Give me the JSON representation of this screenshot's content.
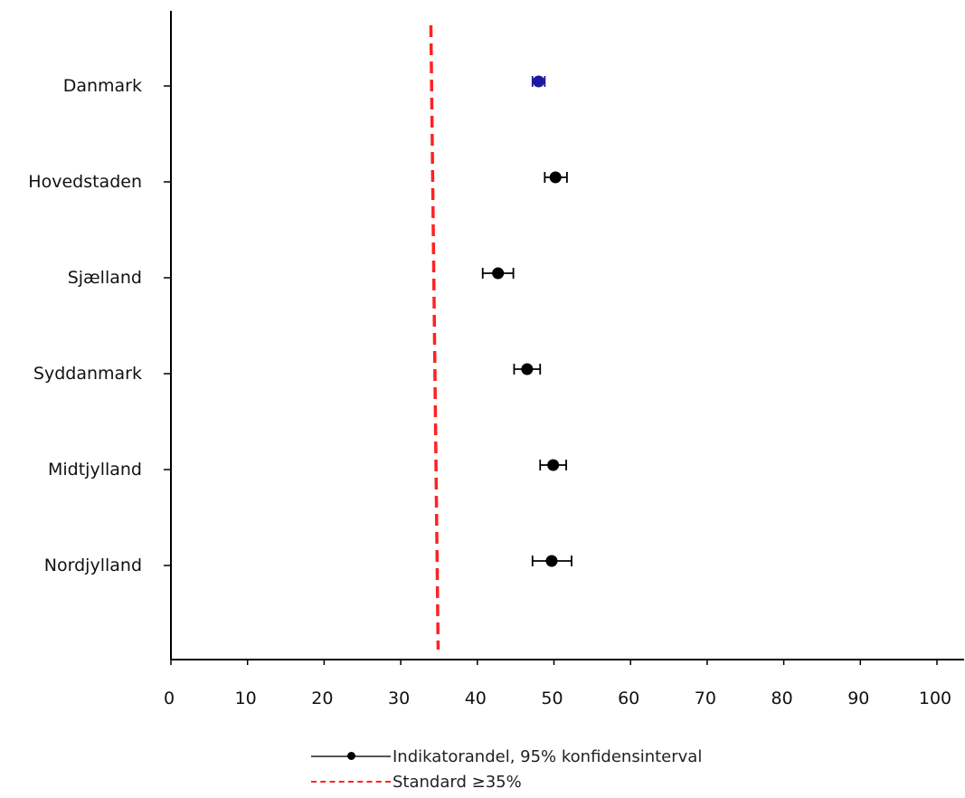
{
  "chart_data": {
    "type": "scatter",
    "orientation": "horizontal",
    "categories": [
      "Danmark",
      "Hovedstaden",
      "Sjælland",
      "Syddanmark",
      "Midtjylland",
      "Nordjylland"
    ],
    "series": [
      {
        "name": "Indikatorandel, 95% konfidensinterval",
        "values": [
          48.0,
          50.2,
          42.7,
          46.5,
          49.9,
          49.7
        ],
        "ci_low": [
          47.2,
          48.8,
          40.7,
          44.8,
          48.2,
          47.2
        ],
        "ci_high": [
          48.8,
          51.7,
          44.7,
          48.2,
          51.6,
          52.3
        ],
        "colors": [
          "#1a1aa0",
          "#000000",
          "#000000",
          "#000000",
          "#000000",
          "#000000"
        ]
      }
    ],
    "reference_line": {
      "label": "Standard ≥35%",
      "value": 35,
      "color": "#ff2222"
    },
    "xlim": [
      0,
      100
    ],
    "x_ticks": [
      0,
      10,
      20,
      30,
      40,
      50,
      60,
      70,
      80,
      90,
      100
    ],
    "xlabel": "",
    "ylabel": "",
    "title": "",
    "grid": false,
    "legend_position": "bottom"
  },
  "legend": {
    "item1": "Indikatorandel, 95% konfidensinterval",
    "item2": "Standard ≥35%"
  }
}
